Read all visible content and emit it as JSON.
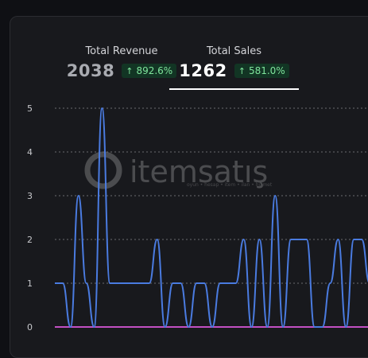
{
  "tabs": [
    {
      "label": "Total Revenue",
      "value": "2038",
      "change": "892.6%",
      "active": false
    },
    {
      "label": "Total Sales",
      "value": "1262",
      "change": "581.0%",
      "active": true
    }
  ],
  "watermark": {
    "brand": "itemsatış",
    "tagline": "oyun • hesap • item • ilan • hizmet"
  },
  "colors": {
    "line": "#4a7be0",
    "baseline": "#c24fc2",
    "grid": "#6a6b70",
    "positive": "#7fe59c"
  },
  "chart_data": {
    "type": "line",
    "ylim": [
      0,
      5
    ],
    "yticks": [
      0,
      1,
      2,
      3,
      4,
      5
    ],
    "grid": "dashed-horizontal",
    "series": [
      {
        "values": [
          1,
          1,
          0,
          3,
          1,
          0,
          5,
          1,
          1,
          1,
          1,
          1,
          1,
          2,
          0,
          1,
          1,
          0,
          1,
          1,
          0,
          1,
          1,
          1,
          2,
          0,
          2,
          0,
          3,
          0,
          2,
          2,
          2,
          0,
          0,
          1,
          2,
          0,
          2,
          2,
          1
        ]
      },
      {
        "values": [
          0,
          0,
          0,
          0,
          0,
          0,
          0,
          0,
          0,
          0,
          0,
          0,
          0,
          0,
          0,
          0,
          0,
          0,
          0,
          0,
          0,
          0,
          0,
          0,
          0,
          0,
          0,
          0,
          0,
          0,
          0,
          0,
          0,
          0,
          0,
          0,
          0,
          0,
          0,
          0,
          0
        ]
      }
    ]
  }
}
